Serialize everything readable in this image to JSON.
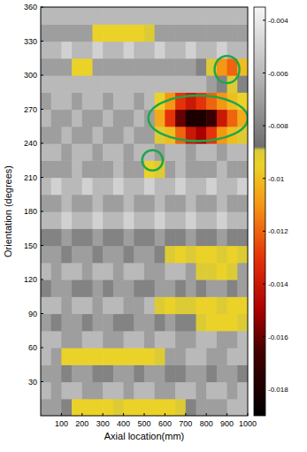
{
  "chart_data": {
    "type": "heatmap",
    "x_label": "Axial location(mm)",
    "y_label": "Orientation (degrees)",
    "xlim": [
      0,
      1000
    ],
    "ylim": [
      0,
      360
    ],
    "xticks": [
      100,
      200,
      300,
      400,
      500,
      600,
      700,
      800,
      900,
      1000
    ],
    "yticks": [
      30,
      60,
      90,
      120,
      150,
      180,
      210,
      240,
      270,
      300,
      330,
      360
    ],
    "x": [
      25,
      75,
      125,
      175,
      225,
      275,
      325,
      375,
      425,
      475,
      525,
      575,
      625,
      675,
      725,
      775,
      825,
      875,
      925,
      975
    ],
    "y": [
      7.5,
      22.5,
      37.5,
      52.5,
      67.5,
      82.5,
      97.5,
      112.5,
      127.5,
      142.5,
      157.5,
      172.5,
      187.5,
      202.5,
      217.5,
      232.5,
      247.5,
      262.5,
      277.5,
      292.5,
      307.5,
      322.5,
      337.5,
      352.5
    ],
    "values": [
      [
        -0.007,
        -0.007,
        -0.008,
        -0.0095,
        -0.0095,
        -0.0095,
        -0.0095,
        -0.009,
        -0.0095,
        -0.0095,
        -0.0095,
        -0.0095,
        -0.0095,
        -0.009,
        -0.008,
        -0.007,
        -0.007,
        -0.007,
        -0.006,
        -0.006
      ],
      [
        -0.006,
        -0.007,
        -0.006,
        -0.006,
        -0.007,
        -0.007,
        -0.006,
        -0.006,
        -0.007,
        -0.006,
        -0.006,
        -0.007,
        -0.007,
        -0.006,
        -0.006,
        -0.007,
        -0.006,
        -0.006,
        -0.007,
        -0.006
      ],
      [
        -0.007,
        -0.007,
        -0.008,
        -0.007,
        -0.007,
        -0.008,
        -0.008,
        -0.007,
        -0.007,
        -0.008,
        -0.007,
        -0.007,
        -0.008,
        -0.008,
        -0.007,
        -0.007,
        -0.008,
        -0.007,
        -0.007,
        -0.008
      ],
      [
        -0.006,
        -0.007,
        -0.0095,
        -0.0095,
        -0.0095,
        -0.0095,
        -0.0095,
        -0.0095,
        -0.0095,
        -0.0095,
        -0.0095,
        -0.009,
        -0.007,
        -0.007,
        -0.006,
        -0.006,
        -0.007,
        -0.007,
        -0.006,
        -0.006
      ],
      [
        -0.006,
        -0.006,
        -0.007,
        -0.007,
        -0.006,
        -0.006,
        -0.007,
        -0.007,
        -0.006,
        -0.006,
        -0.007,
        -0.006,
        -0.006,
        -0.007,
        -0.007,
        -0.006,
        -0.006,
        -0.007,
        -0.007,
        -0.006
      ],
      [
        -0.007,
        -0.008,
        -0.007,
        -0.007,
        -0.008,
        -0.007,
        -0.007,
        -0.008,
        -0.008,
        -0.007,
        -0.007,
        -0.008,
        -0.007,
        -0.008,
        -0.008,
        -0.009,
        -0.0095,
        -0.0095,
        -0.0095,
        -0.009
      ],
      [
        -0.006,
        -0.006,
        -0.007,
        -0.006,
        -0.006,
        -0.007,
        -0.006,
        -0.006,
        -0.007,
        -0.007,
        -0.006,
        -0.009,
        -0.0095,
        -0.009,
        -0.009,
        -0.0095,
        -0.0095,
        -0.009,
        -0.0095,
        -0.0095
      ],
      [
        -0.008,
        -0.007,
        -0.007,
        -0.008,
        -0.008,
        -0.007,
        -0.008,
        -0.007,
        -0.007,
        -0.008,
        -0.008,
        -0.007,
        -0.007,
        -0.008,
        -0.007,
        -0.008,
        -0.007,
        -0.007,
        -0.008,
        -0.007
      ],
      [
        -0.006,
        -0.007,
        -0.006,
        -0.006,
        -0.007,
        -0.006,
        -0.006,
        -0.007,
        -0.006,
        -0.006,
        -0.007,
        -0.007,
        -0.006,
        -0.006,
        -0.007,
        -0.009,
        -0.009,
        -0.0095,
        -0.009,
        -0.007
      ],
      [
        -0.007,
        -0.007,
        -0.008,
        -0.007,
        -0.007,
        -0.008,
        -0.007,
        -0.007,
        -0.008,
        -0.007,
        -0.007,
        -0.008,
        -0.009,
        -0.0095,
        -0.009,
        -0.0095,
        -0.0095,
        -0.009,
        -0.0095,
        -0.009
      ],
      [
        -0.008,
        -0.008,
        -0.007,
        -0.008,
        -0.008,
        -0.007,
        -0.008,
        -0.008,
        -0.007,
        -0.008,
        -0.008,
        -0.007,
        -0.008,
        -0.008,
        -0.007,
        -0.008,
        -0.008,
        -0.007,
        -0.008,
        -0.008
      ],
      [
        -0.006,
        -0.006,
        -0.005,
        -0.006,
        -0.006,
        -0.005,
        -0.006,
        -0.006,
        -0.005,
        -0.006,
        -0.006,
        -0.005,
        -0.006,
        -0.006,
        -0.005,
        -0.006,
        -0.006,
        -0.005,
        -0.006,
        -0.006
      ],
      [
        -0.007,
        -0.007,
        -0.006,
        -0.007,
        -0.007,
        -0.006,
        -0.007,
        -0.007,
        -0.006,
        -0.007,
        -0.007,
        -0.006,
        -0.007,
        -0.007,
        -0.006,
        -0.007,
        -0.007,
        -0.006,
        -0.007,
        -0.007
      ],
      [
        -0.006,
        -0.005,
        -0.006,
        -0.006,
        -0.005,
        -0.006,
        -0.006,
        -0.005,
        -0.006,
        -0.006,
        -0.005,
        -0.006,
        -0.006,
        -0.005,
        -0.006,
        -0.006,
        -0.005,
        -0.006,
        -0.006,
        -0.005
      ],
      [
        -0.007,
        -0.007,
        -0.007,
        -0.006,
        -0.007,
        -0.007,
        -0.007,
        -0.006,
        -0.007,
        -0.007,
        -0.0095,
        -0.009,
        -0.007,
        -0.006,
        -0.007,
        -0.007,
        -0.007,
        -0.006,
        -0.007,
        -0.007
      ],
      [
        -0.006,
        -0.006,
        -0.007,
        -0.006,
        -0.006,
        -0.007,
        -0.006,
        -0.006,
        -0.007,
        -0.006,
        -0.006,
        -0.007,
        -0.006,
        -0.006,
        -0.007,
        -0.006,
        -0.006,
        -0.007,
        -0.006,
        -0.006
      ],
      [
        -0.007,
        -0.007,
        -0.006,
        -0.007,
        -0.007,
        -0.006,
        -0.007,
        -0.007,
        -0.006,
        -0.007,
        -0.007,
        -0.009,
        -0.01,
        -0.012,
        -0.014,
        -0.015,
        -0.013,
        -0.011,
        -0.01,
        -0.009
      ],
      [
        -0.006,
        -0.007,
        -0.007,
        -0.006,
        -0.007,
        -0.007,
        -0.006,
        -0.007,
        -0.007,
        -0.006,
        -0.007,
        -0.0105,
        -0.013,
        -0.016,
        -0.018,
        -0.018,
        -0.017,
        -0.014,
        -0.012,
        -0.0105
      ],
      [
        -0.007,
        -0.006,
        -0.006,
        -0.007,
        -0.006,
        -0.006,
        -0.007,
        -0.006,
        -0.006,
        -0.007,
        -0.006,
        -0.0095,
        -0.011,
        -0.013,
        -0.014,
        -0.013,
        -0.012,
        -0.011,
        -0.01,
        -0.0095
      ],
      [
        -0.006,
        -0.006,
        -0.006,
        -0.006,
        -0.006,
        -0.006,
        -0.006,
        -0.006,
        -0.006,
        -0.006,
        -0.006,
        -0.006,
        -0.006,
        -0.006,
        -0.006,
        -0.006,
        -0.007,
        -0.008,
        -0.009,
        -0.008
      ],
      [
        -0.007,
        -0.007,
        -0.007,
        -0.0095,
        -0.0095,
        -0.007,
        -0.007,
        -0.007,
        -0.007,
        -0.007,
        -0.007,
        -0.007,
        -0.007,
        -0.007,
        -0.007,
        -0.008,
        -0.009,
        -0.011,
        -0.012,
        -0.01
      ],
      [
        -0.006,
        -0.006,
        -0.005,
        -0.006,
        -0.006,
        -0.005,
        -0.006,
        -0.006,
        -0.005,
        -0.006,
        -0.006,
        -0.005,
        -0.006,
        -0.006,
        -0.005,
        -0.006,
        -0.006,
        -0.005,
        -0.006,
        -0.006
      ],
      [
        -0.007,
        -0.007,
        -0.007,
        -0.007,
        -0.007,
        -0.0095,
        -0.0095,
        -0.0095,
        -0.0095,
        -0.0095,
        -0.009,
        -0.007,
        -0.007,
        -0.007,
        -0.007,
        -0.007,
        -0.007,
        -0.007,
        -0.007,
        -0.007
      ],
      [
        -0.006,
        -0.006,
        -0.006,
        -0.006,
        -0.006,
        -0.006,
        -0.006,
        -0.006,
        -0.006,
        -0.006,
        -0.006,
        -0.006,
        -0.006,
        -0.006,
        -0.006,
        -0.006,
        -0.006,
        -0.006,
        -0.006,
        -0.006
      ]
    ],
    "colorbar": {
      "range": [
        -0.019,
        -0.0035
      ],
      "ticks": [
        -0.004,
        -0.006,
        -0.008,
        -0.01,
        -0.012,
        -0.014,
        -0.016,
        -0.018
      ]
    },
    "highlights": [
      {
        "x": 900,
        "y": 305,
        "rx": 60,
        "ry": 12
      },
      {
        "x": 760,
        "y": 262,
        "rx": 240,
        "ry": 20
      },
      {
        "x": 540,
        "y": 225,
        "rx": 50,
        "ry": 9
      }
    ]
  }
}
